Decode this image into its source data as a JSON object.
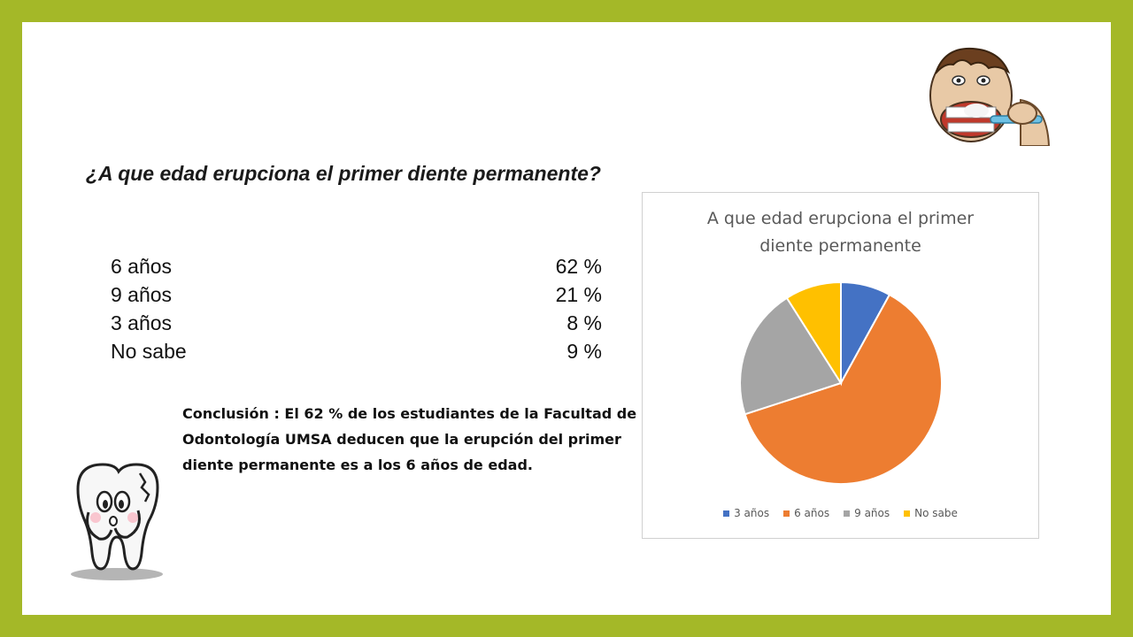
{
  "slide": {
    "question": "¿A que edad erupciona el primer diente permanente?",
    "results": [
      {
        "label": "6 años",
        "value": "62 %"
      },
      {
        "label": "9 años",
        "value": "21 %"
      },
      {
        "label": "3 años",
        "value": " 8 %"
      },
      {
        "label": "No sabe",
        "value": " 9 %"
      }
    ],
    "conclusion": "Conclusión : El 62 %  de los estudiantes de la Facultad de Odontología  UMSA deducen que la erupción del primer diente permanente es a los 6 años de edad."
  },
  "colors": {
    "frame": "#a4b828",
    "series": [
      "#4472c4",
      "#ed7d31",
      "#a5a5a5",
      "#ffc000"
    ]
  },
  "chart_data": {
    "type": "pie",
    "title_lines": [
      "A que edad erupciona el primer",
      "diente permanente"
    ],
    "categories": [
      "3 años",
      "6 años",
      "9 años",
      "No sabe"
    ],
    "values": [
      8,
      62,
      21,
      9
    ],
    "legend_position": "bottom"
  },
  "illustrations": {
    "top_right": "person-brushing-teeth-illustration",
    "bottom_left": "tooth-character-illustration"
  }
}
